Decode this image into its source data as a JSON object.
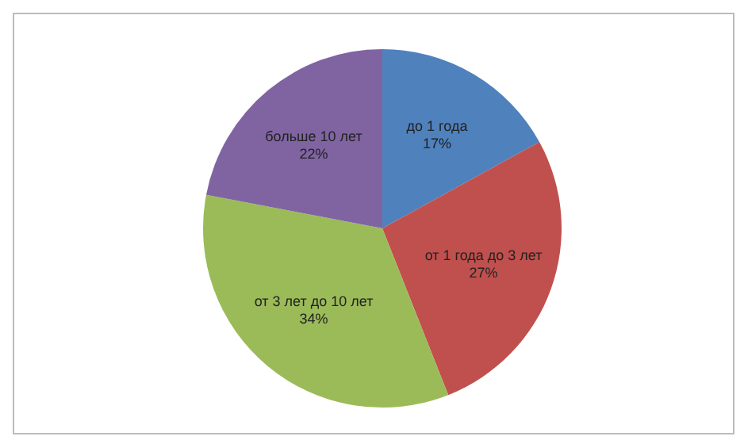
{
  "chart_data": {
    "type": "pie",
    "categories": [
      "до 1 года",
      "от 1 года до 3 лет",
      "от 3 лет до 10 лет",
      "больше 10 лет"
    ],
    "values": [
      17,
      27,
      34,
      22
    ],
    "value_labels": [
      "17%",
      "27%",
      "34%",
      "22%"
    ],
    "colors": [
      "#4f81bd",
      "#c0504d",
      "#9bbb59",
      "#8064a2"
    ],
    "legend": false
  }
}
